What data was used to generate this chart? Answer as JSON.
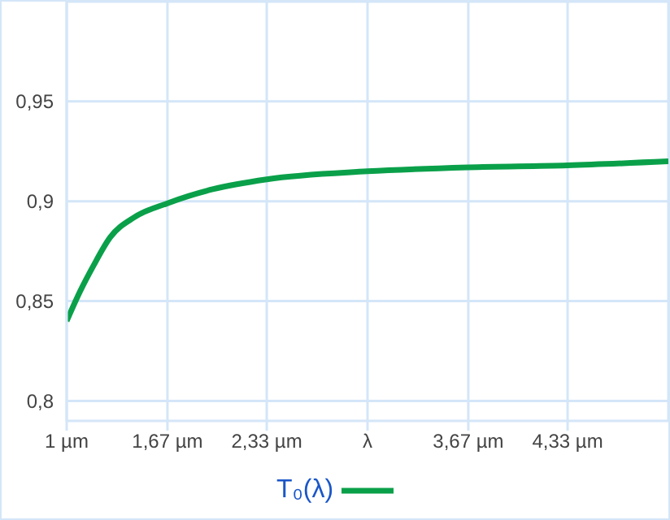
{
  "chart_data": {
    "type": "line",
    "x": [
      1,
      1.09,
      1.18,
      1.29,
      1.45,
      1.67,
      1.97,
      2.33,
      3,
      3.67,
      4.33,
      5
    ],
    "series": [
      {
        "name": "T₀(λ)",
        "color": "#0aa04a",
        "values": [
          0.84,
          0.855,
          0.868,
          0.882,
          0.892,
          0.899,
          0.906,
          0.911,
          0.915,
          0.917,
          0.918,
          0.92
        ]
      }
    ],
    "xlim": [
      1,
      5
    ],
    "xticks": [
      {
        "value": 1,
        "label": "1 µm"
      },
      {
        "value": 1.67,
        "label": "1,67 µm"
      },
      {
        "value": 2.33,
        "label": "2,33 µm"
      },
      {
        "value": 3,
        "label": "λ"
      },
      {
        "value": 3.67,
        "label": "3,67 µm"
      },
      {
        "value": 4.33,
        "label": "4,33 µm"
      }
    ],
    "ylim": [
      0.79,
      1.0
    ],
    "yticks": [
      {
        "value": 0.8,
        "label": "0,8"
      },
      {
        "value": 0.85,
        "label": "0,85"
      },
      {
        "value": 0.9,
        "label": "0,9"
      },
      {
        "value": 0.95,
        "label": "0,95"
      }
    ],
    "grid": true,
    "legend": "bottom",
    "marker": "none",
    "line_style": "solid"
  }
}
